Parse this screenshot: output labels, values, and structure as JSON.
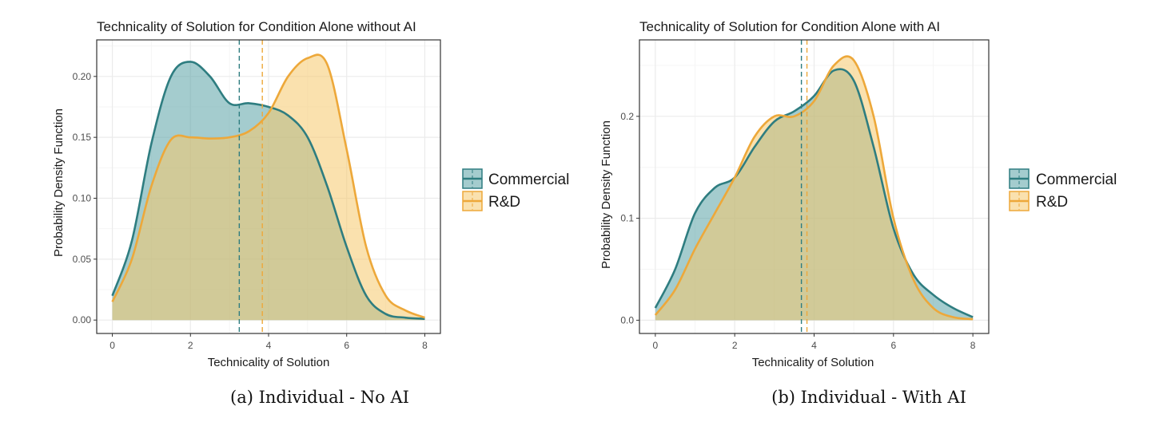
{
  "colors": {
    "commercial_line": "#2e7d80",
    "commercial_fill": "#5aa3a6",
    "rd_line": "#eda83a",
    "rd_fill": "#f5c96b",
    "overlap_fill": "#a8a86a",
    "grid_major": "#ebebeb",
    "grid_minor": "#f5f5f5",
    "panel_border": "#333333"
  },
  "legend": {
    "entries": [
      {
        "key": "commercial",
        "label": "Commercial"
      },
      {
        "key": "rd",
        "label": "R&D"
      }
    ]
  },
  "chart_data": [
    {
      "type": "area",
      "title": "Technicality of Solution for Condition Alone without AI",
      "xlabel": "Technicality of Solution",
      "ylabel": "Probability Density Function",
      "caption": "(a) Individual - No AI",
      "xlim": [
        -0.4,
        8.4
      ],
      "ylim": [
        -0.011,
        0.23
      ],
      "xticks": [
        0,
        2,
        4,
        6,
        8
      ],
      "yticks": [
        0.0,
        0.05,
        0.1,
        0.15,
        0.2
      ],
      "ytick_labels": [
        "0.00",
        "0.05",
        "0.10",
        "0.15",
        "0.20"
      ],
      "grid": true,
      "legend_position": "right",
      "series": [
        {
          "key": "commercial",
          "name": "Commercial",
          "x": [
            0,
            0.5,
            1,
            1.5,
            2,
            2.5,
            3,
            3.5,
            4,
            4.5,
            5,
            5.5,
            6,
            6.5,
            7,
            7.5,
            8
          ],
          "y": [
            0.02,
            0.065,
            0.145,
            0.2,
            0.212,
            0.2,
            0.178,
            0.178,
            0.175,
            0.168,
            0.15,
            0.11,
            0.06,
            0.02,
            0.005,
            0.002,
            0.001
          ]
        },
        {
          "key": "rd",
          "name": "R&D",
          "x": [
            0,
            0.5,
            1,
            1.5,
            2,
            2.5,
            3,
            3.5,
            4,
            4.5,
            5,
            5.5,
            6,
            6.5,
            7,
            7.5,
            8
          ],
          "y": [
            0.015,
            0.05,
            0.11,
            0.148,
            0.15,
            0.149,
            0.15,
            0.155,
            0.17,
            0.2,
            0.215,
            0.21,
            0.14,
            0.06,
            0.02,
            0.008,
            0.002
          ]
        }
      ],
      "vlines": [
        {
          "key": "commercial",
          "x": 3.25
        },
        {
          "key": "rd",
          "x": 3.84
        }
      ]
    },
    {
      "type": "area",
      "title": "Technicality of Solution for Condition Alone with AI",
      "xlabel": "Technicality of Solution",
      "ylabel": "Probability Density Function",
      "caption": "(b) Individual - With AI",
      "xlim": [
        -0.4,
        8.4
      ],
      "ylim": [
        -0.013,
        0.275
      ],
      "xticks": [
        0,
        2,
        4,
        6,
        8
      ],
      "yticks": [
        0.0,
        0.1,
        0.2
      ],
      "ytick_labels": [
        "0.0",
        "0.1",
        "0.2"
      ],
      "grid": true,
      "legend_position": "right",
      "series": [
        {
          "key": "commercial",
          "name": "Commercial",
          "x": [
            0,
            0.5,
            1,
            1.5,
            2,
            2.5,
            3,
            3.5,
            4,
            4.5,
            5,
            5.5,
            6,
            6.5,
            7,
            7.5,
            8
          ],
          "y": [
            0.012,
            0.05,
            0.105,
            0.13,
            0.14,
            0.17,
            0.195,
            0.205,
            0.22,
            0.245,
            0.235,
            0.17,
            0.09,
            0.045,
            0.025,
            0.012,
            0.003
          ]
        },
        {
          "key": "rd",
          "name": "R&D",
          "x": [
            0,
            0.5,
            1,
            1.5,
            2,
            2.5,
            3,
            3.5,
            4,
            4.5,
            5,
            5.5,
            6,
            6.5,
            7,
            7.5,
            8
          ],
          "y": [
            0.005,
            0.03,
            0.07,
            0.105,
            0.14,
            0.18,
            0.2,
            0.2,
            0.215,
            0.25,
            0.255,
            0.2,
            0.1,
            0.04,
            0.012,
            0.003,
            0.001
          ]
        }
      ],
      "vlines": [
        {
          "key": "commercial",
          "x": 3.68
        },
        {
          "key": "rd",
          "x": 3.82
        }
      ]
    }
  ]
}
